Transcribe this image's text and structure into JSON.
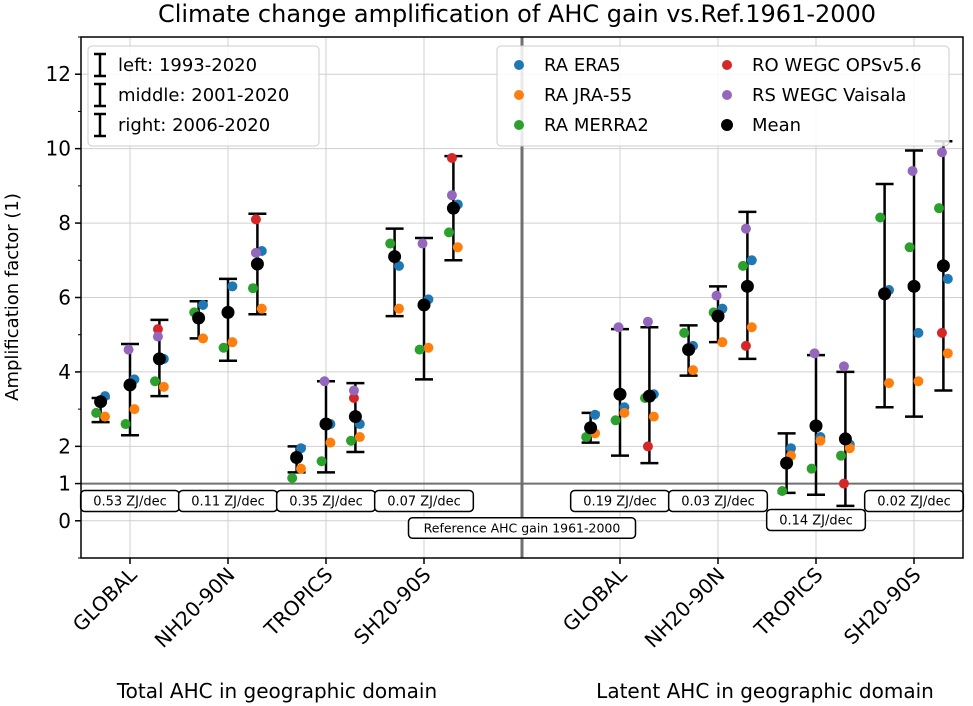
{
  "chart_data": {
    "type": "scatter",
    "title": "Climate change amplification of AHC gain vs.Ref.1961-2000",
    "ylabel": "Amplification factor (1)",
    "ylim": [
      -1,
      13
    ],
    "yticks": [
      0,
      1,
      2,
      4,
      6,
      8,
      10,
      12
    ],
    "x_tick_labels": [
      "GLOBAL",
      "NH20-90N",
      "TROPICS",
      "SH20-90S",
      "GLOBAL",
      "NH20-90N",
      "TROPICS",
      "SH20-90S"
    ],
    "panel_labels": [
      "Total AHC in geographic domain",
      "Latent AHC in geographic domain"
    ],
    "reference_label": "Reference AHC gain 1961-2000",
    "period_legend": [
      "left: 1993-2020",
      "middle: 2001-2020",
      "right: 2006-2020"
    ],
    "series_legend": [
      {
        "name": "RA ERA5",
        "color": "#1f77b4"
      },
      {
        "name": "RA JRA-55",
        "color": "#ff7f0e"
      },
      {
        "name": "RA MERRA2",
        "color": "#2ca02c"
      },
      {
        "name": "RO WEGC OPSv5.6",
        "color": "#d62728"
      },
      {
        "name": "RS WEGC Vaisala",
        "color": "#9467bd"
      },
      {
        "name": "Mean",
        "color": "#000000"
      }
    ],
    "series_colors": {
      "era5": "#1f77b4",
      "jra55": "#ff7f0e",
      "merra2": "#2ca02c",
      "wegc": "#d62728",
      "vaisala": "#9467bd",
      "mean": "#000000"
    },
    "reference_gains": [
      {
        "x": 0,
        "label": "0.53 ZJ/dec",
        "row": 0
      },
      {
        "x": 1,
        "label": "0.11 ZJ/dec",
        "row": 0
      },
      {
        "x": 2,
        "label": "0.35 ZJ/dec",
        "row": 0
      },
      {
        "x": 3,
        "label": "0.07 ZJ/dec",
        "row": 0
      },
      {
        "x": 5,
        "label": "0.19 ZJ/dec",
        "row": 0
      },
      {
        "x": 6,
        "label": "0.03 ZJ/dec",
        "row": 0
      },
      {
        "x": 7,
        "label": "0.14 ZJ/dec",
        "row": 1
      },
      {
        "x": 8,
        "label": "0.02 ZJ/dec",
        "row": 0
      }
    ],
    "groups": [
      {
        "x": -0.3,
        "mean": 3.2,
        "err_low": 2.65,
        "err_high": 3.3,
        "era5": 3.35,
        "jra55": 2.8,
        "merra2": 2.9,
        "wegc": null,
        "vaisala": null
      },
      {
        "x": 0.0,
        "mean": 3.65,
        "err_low": 2.3,
        "err_high": 4.75,
        "era5": 3.8,
        "jra55": 3.0,
        "merra2": 2.6,
        "wegc": null,
        "vaisala": 4.6
      },
      {
        "x": 0.3,
        "mean": 4.35,
        "err_low": 3.35,
        "err_high": 5.4,
        "era5": 4.35,
        "jra55": 3.6,
        "merra2": 3.75,
        "wegc": 5.15,
        "vaisala": 4.95
      },
      {
        "x": 0.7,
        "mean": 5.45,
        "err_low": 4.9,
        "err_high": 5.9,
        "era5": 5.8,
        "jra55": 4.9,
        "merra2": 5.6,
        "wegc": null,
        "vaisala": null
      },
      {
        "x": 1.0,
        "mean": 5.6,
        "err_low": 4.3,
        "err_high": 6.5,
        "era5": 6.3,
        "jra55": 4.8,
        "merra2": 4.65,
        "wegc": null,
        "vaisala": 5.6
      },
      {
        "x": 1.3,
        "mean": 6.9,
        "err_low": 5.55,
        "err_high": 8.25,
        "era5": 7.25,
        "jra55": 5.7,
        "merra2": 6.25,
        "wegc": 8.1,
        "vaisala": 7.2
      },
      {
        "x": 1.7,
        "mean": 1.7,
        "err_low": 1.3,
        "err_high": 2.0,
        "era5": 1.95,
        "jra55": 1.4,
        "merra2": 1.15,
        "wegc": null,
        "vaisala": null
      },
      {
        "x": 2.0,
        "mean": 2.6,
        "err_low": 1.3,
        "err_high": 3.75,
        "era5": 2.6,
        "jra55": 2.1,
        "merra2": 1.6,
        "wegc": null,
        "vaisala": 3.75
      },
      {
        "x": 2.3,
        "mean": 2.8,
        "err_low": 1.85,
        "err_high": 3.7,
        "era5": 2.6,
        "jra55": 2.25,
        "merra2": 2.15,
        "wegc": 3.3,
        "vaisala": 3.5
      },
      {
        "x": 2.7,
        "mean": 7.1,
        "err_low": 5.5,
        "err_high": 7.85,
        "era5": 6.85,
        "jra55": 5.7,
        "merra2": 7.45,
        "wegc": null,
        "vaisala": null
      },
      {
        "x": 3.0,
        "mean": 5.8,
        "err_low": 3.8,
        "err_high": 7.6,
        "era5": 5.95,
        "jra55": 4.65,
        "merra2": 4.6,
        "wegc": null,
        "vaisala": 7.45
      },
      {
        "x": 3.3,
        "mean": 8.4,
        "err_low": 7.0,
        "err_high": 9.8,
        "era5": 8.5,
        "jra55": 7.35,
        "merra2": 7.75,
        "wegc": 9.75,
        "vaisala": 8.75
      },
      {
        "x": 4.7,
        "mean": 2.5,
        "err_low": 2.1,
        "err_high": 2.9,
        "era5": 2.85,
        "jra55": 2.35,
        "merra2": 2.25,
        "wegc": null,
        "vaisala": null
      },
      {
        "x": 5.0,
        "mean": 3.4,
        "err_low": 1.75,
        "err_high": 5.15,
        "era5": 3.05,
        "jra55": 2.9,
        "merra2": 2.7,
        "wegc": null,
        "vaisala": 5.2
      },
      {
        "x": 5.3,
        "mean": 3.35,
        "err_low": 1.55,
        "err_high": 5.2,
        "era5": 3.4,
        "jra55": 2.8,
        "merra2": 3.3,
        "wegc": 2.0,
        "vaisala": 5.35
      },
      {
        "x": 5.7,
        "mean": 4.6,
        "err_low": 3.9,
        "err_high": 5.25,
        "era5": 4.7,
        "jra55": 4.05,
        "merra2": 5.05,
        "wegc": null,
        "vaisala": null
      },
      {
        "x": 6.0,
        "mean": 5.5,
        "err_low": 4.8,
        "err_high": 6.3,
        "era5": 5.7,
        "jra55": 4.8,
        "merra2": 5.6,
        "wegc": null,
        "vaisala": 6.05
      },
      {
        "x": 6.3,
        "mean": 6.3,
        "err_low": 4.35,
        "err_high": 8.3,
        "era5": 7.0,
        "jra55": 5.2,
        "merra2": 6.85,
        "wegc": 4.7,
        "vaisala": 7.85
      },
      {
        "x": 6.7,
        "mean": 1.55,
        "err_low": 0.75,
        "err_high": 2.35,
        "era5": 1.95,
        "jra55": 1.75,
        "merra2": 0.8,
        "wegc": null,
        "vaisala": null
      },
      {
        "x": 7.0,
        "mean": 2.55,
        "err_low": 0.7,
        "err_high": 4.45,
        "era5": 2.25,
        "jra55": 2.15,
        "merra2": 1.4,
        "wegc": null,
        "vaisala": 4.5
      },
      {
        "x": 7.3,
        "mean": 2.2,
        "err_low": 0.4,
        "err_high": 4.0,
        "era5": 2.05,
        "jra55": 1.95,
        "merra2": 1.75,
        "wegc": 1.0,
        "vaisala": 4.15
      },
      {
        "x": 7.7,
        "mean": 6.1,
        "err_low": 3.05,
        "err_high": 9.05,
        "era5": 6.2,
        "jra55": 3.7,
        "merra2": 8.15,
        "wegc": null,
        "vaisala": null
      },
      {
        "x": 8.0,
        "mean": 6.3,
        "err_low": 2.8,
        "err_high": 9.95,
        "era5": 5.05,
        "jra55": 3.75,
        "merra2": 7.35,
        "wegc": null,
        "vaisala": 9.4
      },
      {
        "x": 8.3,
        "mean": 6.85,
        "err_low": 3.5,
        "err_high": 10.2,
        "era5": 6.5,
        "jra55": 4.5,
        "merra2": 8.4,
        "wegc": 5.05,
        "vaisala": 9.9
      }
    ]
  }
}
